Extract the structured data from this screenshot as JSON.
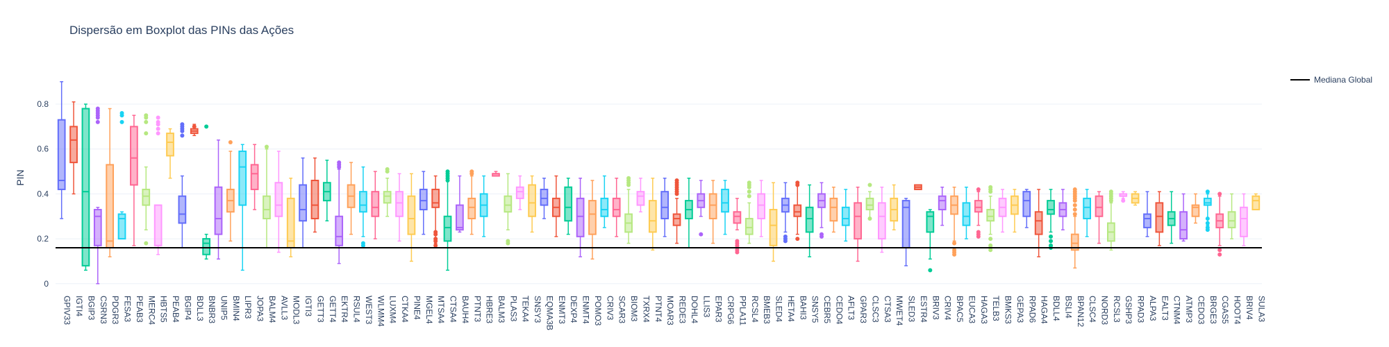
{
  "chart_data": {
    "type": "box",
    "title": "Dispersão em Boxplot das PINs das Ações",
    "xlabel": "",
    "ylabel": "PIN",
    "ylim": [
      -0.01,
      0.93
    ],
    "y_ticks": [
      0,
      0.2,
      0.4,
      0.6,
      0.8
    ],
    "grid": true,
    "legend_position": "top-right",
    "reference_line": {
      "name": "Mediana Global",
      "y": 0.16,
      "color": "#000000"
    },
    "palette": [
      "#636efa",
      "#ef553b",
      "#00cc96",
      "#ab63fa",
      "#ffa15a",
      "#19d3f3",
      "#ff6692",
      "#b6e880",
      "#ff97ff",
      "#fecb52"
    ],
    "series": [
      {
        "name": "GPIV33",
        "min": 0.29,
        "q1": 0.42,
        "median": 0.46,
        "q3": 0.73,
        "max": 0.9,
        "outliers": []
      },
      {
        "name": "IGTI4",
        "min": 0.4,
        "q1": 0.54,
        "median": 0.64,
        "q3": 0.7,
        "max": 0.81,
        "outliers": []
      },
      {
        "name": "BGIP3",
        "min": 0.06,
        "q1": 0.08,
        "median": 0.41,
        "q3": 0.78,
        "max": 0.8,
        "outliers": []
      },
      {
        "name": "CSRN3",
        "min": 0.0,
        "q1": 0.17,
        "median": 0.3,
        "q3": 0.33,
        "max": 0.34,
        "outliers": [
          0.72,
          0.74,
          0.75,
          0.76,
          0.77,
          0.78
        ]
      },
      {
        "name": "PDGR3",
        "min": 0.12,
        "q1": 0.16,
        "median": 0.19,
        "q3": 0.53,
        "max": 0.78,
        "outliers": []
      },
      {
        "name": "FESA3",
        "min": 0.2,
        "q1": 0.2,
        "median": 0.29,
        "q3": 0.31,
        "max": 0.32,
        "outliers": [
          0.72,
          0.75,
          0.76
        ]
      },
      {
        "name": "PEAB3",
        "min": 0.17,
        "q1": 0.44,
        "median": 0.56,
        "q3": 0.7,
        "max": 0.75,
        "outliers": []
      },
      {
        "name": "MERC4",
        "min": 0.24,
        "q1": 0.35,
        "median": 0.39,
        "q3": 0.42,
        "max": 0.52,
        "outliers": [
          0.18,
          0.67,
          0.72,
          0.74,
          0.75
        ]
      },
      {
        "name": "HBTS5",
        "min": 0.13,
        "q1": 0.17,
        "median": 0.17,
        "q3": 0.35,
        "max": 0.35,
        "outliers": [
          0.67,
          0.69,
          0.71,
          0.72,
          0.74
        ]
      },
      {
        "name": "PEAB4",
        "min": 0.47,
        "q1": 0.57,
        "median": 0.63,
        "q3": 0.67,
        "max": 0.69,
        "outliers": []
      },
      {
        "name": "BGIP4",
        "min": 0.16,
        "q1": 0.27,
        "median": 0.31,
        "q3": 0.39,
        "max": 0.48,
        "outliers": [
          0.66,
          0.68,
          0.69,
          0.7,
          0.71
        ]
      },
      {
        "name": "BDLL3",
        "min": 0.66,
        "q1": 0.67,
        "median": 0.68,
        "q3": 0.69,
        "max": 0.71,
        "outliers": [
          0.7
        ]
      },
      {
        "name": "BNBR3",
        "min": 0.11,
        "q1": 0.13,
        "median": 0.18,
        "q3": 0.2,
        "max": 0.22,
        "outliers": [
          0.7
        ]
      },
      {
        "name": "UNIP5",
        "min": 0.11,
        "q1": 0.22,
        "median": 0.29,
        "q3": 0.43,
        "max": 0.64,
        "outliers": []
      },
      {
        "name": "BMIN4",
        "min": 0.19,
        "q1": 0.32,
        "median": 0.37,
        "q3": 0.42,
        "max": 0.59,
        "outliers": [
          0.63
        ]
      },
      {
        "name": "LIPR3",
        "min": 0.06,
        "q1": 0.35,
        "median": 0.52,
        "q3": 0.59,
        "max": 0.62,
        "outliers": []
      },
      {
        "name": "JOPA3",
        "min": 0.33,
        "q1": 0.42,
        "median": 0.49,
        "q3": 0.53,
        "max": 0.62,
        "outliers": []
      },
      {
        "name": "BALM4",
        "min": 0.16,
        "q1": 0.29,
        "median": 0.33,
        "q3": 0.39,
        "max": 0.6,
        "outliers": [
          0.61
        ]
      },
      {
        "name": "AVLL3",
        "min": 0.14,
        "q1": 0.3,
        "median": 0.35,
        "q3": 0.45,
        "max": 0.59,
        "outliers": []
      },
      {
        "name": "MODL3",
        "min": 0.12,
        "q1": 0.16,
        "median": 0.19,
        "q3": 0.38,
        "max": 0.47,
        "outliers": []
      },
      {
        "name": "IGTI3",
        "min": 0.16,
        "q1": 0.28,
        "median": 0.33,
        "q3": 0.44,
        "max": 0.56,
        "outliers": []
      },
      {
        "name": "GETT3",
        "min": 0.23,
        "q1": 0.29,
        "median": 0.35,
        "q3": 0.46,
        "max": 0.56,
        "outliers": []
      },
      {
        "name": "GETT4",
        "min": 0.28,
        "q1": 0.37,
        "median": 0.41,
        "q3": 0.45,
        "max": 0.55,
        "outliers": []
      },
      {
        "name": "EKTR4",
        "min": 0.09,
        "q1": 0.17,
        "median": 0.21,
        "q3": 0.3,
        "max": 0.51,
        "outliers": [
          0.52,
          0.53,
          0.54
        ]
      },
      {
        "name": "RSUL4",
        "min": 0.22,
        "q1": 0.34,
        "median": 0.39,
        "q3": 0.44,
        "max": 0.54,
        "outliers": []
      },
      {
        "name": "WEST3",
        "min": 0.21,
        "q1": 0.32,
        "median": 0.35,
        "q3": 0.41,
        "max": 0.52,
        "outliers": [
          0.17,
          0.18
        ]
      },
      {
        "name": "WLMM4",
        "min": 0.2,
        "q1": 0.3,
        "median": 0.34,
        "q3": 0.41,
        "max": 0.5,
        "outliers": []
      },
      {
        "name": "LUXM4",
        "min": 0.3,
        "q1": 0.36,
        "median": 0.39,
        "q3": 0.41,
        "max": 0.47,
        "outliers": [
          0.5,
          0.51
        ]
      },
      {
        "name": "CTKA4",
        "min": 0.19,
        "q1": 0.3,
        "median": 0.36,
        "q3": 0.41,
        "max": 0.49,
        "outliers": []
      },
      {
        "name": "PINE4",
        "min": 0.1,
        "q1": 0.22,
        "median": 0.29,
        "q3": 0.39,
        "max": 0.49,
        "outliers": []
      },
      {
        "name": "MGEL4",
        "min": 0.22,
        "q1": 0.33,
        "median": 0.37,
        "q3": 0.42,
        "max": 0.5,
        "outliers": []
      },
      {
        "name": "MTSA4",
        "min": 0.18,
        "q1": 0.34,
        "median": 0.36,
        "q3": 0.42,
        "max": 0.48,
        "outliers": [
          0.17,
          0.19,
          0.2,
          0.22,
          0.23
        ]
      },
      {
        "name": "CTSA4",
        "min": 0.06,
        "q1": 0.19,
        "median": 0.25,
        "q3": 0.3,
        "max": 0.49,
        "outliers": [
          0.46,
          0.47,
          0.48,
          0.49,
          0.5
        ]
      },
      {
        "name": "BAUH4",
        "min": 0.23,
        "q1": 0.24,
        "median": 0.25,
        "q3": 0.35,
        "max": 0.48,
        "outliers": []
      },
      {
        "name": "PTNT3",
        "min": 0.22,
        "q1": 0.29,
        "median": 0.34,
        "q3": 0.38,
        "max": 0.48,
        "outliers": [
          0.49,
          0.5
        ]
      },
      {
        "name": "HBRE3",
        "min": 0.21,
        "q1": 0.3,
        "median": 0.35,
        "q3": 0.4,
        "max": 0.48,
        "outliers": []
      },
      {
        "name": "BALM3",
        "min": 0.48,
        "q1": 0.48,
        "median": 0.49,
        "q3": 0.49,
        "max": 0.5,
        "outliers": []
      },
      {
        "name": "PLAS3",
        "min": 0.24,
        "q1": 0.32,
        "median": 0.35,
        "q3": 0.39,
        "max": 0.49,
        "outliers": [
          0.18,
          0.19
        ]
      },
      {
        "name": "TEKA4",
        "min": 0.33,
        "q1": 0.38,
        "median": 0.41,
        "q3": 0.43,
        "max": 0.48,
        "outliers": []
      },
      {
        "name": "SNSY3",
        "min": 0.23,
        "q1": 0.3,
        "median": 0.36,
        "q3": 0.44,
        "max": 0.48,
        "outliers": []
      },
      {
        "name": "EQMA3B",
        "min": 0.29,
        "q1": 0.35,
        "median": 0.38,
        "q3": 0.42,
        "max": 0.47,
        "outliers": []
      },
      {
        "name": "ENMT3",
        "min": 0.21,
        "q1": 0.3,
        "median": 0.34,
        "q3": 0.38,
        "max": 0.48,
        "outliers": []
      },
      {
        "name": "DEXP4",
        "min": 0.22,
        "q1": 0.28,
        "median": 0.34,
        "q3": 0.43,
        "max": 0.47,
        "outliers": []
      },
      {
        "name": "ENMT4",
        "min": 0.12,
        "q1": 0.21,
        "median": 0.3,
        "q3": 0.38,
        "max": 0.47,
        "outliers": []
      },
      {
        "name": "POMO3",
        "min": 0.11,
        "q1": 0.22,
        "median": 0.31,
        "q3": 0.37,
        "max": 0.46,
        "outliers": []
      },
      {
        "name": "CRIV3",
        "min": 0.25,
        "q1": 0.3,
        "median": 0.33,
        "q3": 0.38,
        "max": 0.48,
        "outliers": []
      },
      {
        "name": "SCAR3",
        "min": 0.21,
        "q1": 0.3,
        "median": 0.33,
        "q3": 0.38,
        "max": 0.47,
        "outliers": []
      },
      {
        "name": "BIOM3",
        "min": 0.18,
        "q1": 0.23,
        "median": 0.27,
        "q3": 0.31,
        "max": 0.42,
        "outliers": [
          0.44,
          0.45,
          0.46,
          0.47
        ]
      },
      {
        "name": "TXRX4",
        "min": 0.32,
        "q1": 0.35,
        "median": 0.39,
        "q3": 0.41,
        "max": 0.47,
        "outliers": []
      },
      {
        "name": "PTNT4",
        "min": 0.15,
        "q1": 0.23,
        "median": 0.28,
        "q3": 0.37,
        "max": 0.47,
        "outliers": []
      },
      {
        "name": "MOAR3",
        "min": 0.21,
        "q1": 0.29,
        "median": 0.34,
        "q3": 0.41,
        "max": 0.47,
        "outliers": []
      },
      {
        "name": "REDE3",
        "min": 0.18,
        "q1": 0.26,
        "median": 0.29,
        "q3": 0.31,
        "max": 0.38,
        "outliers": [
          0.4,
          0.41,
          0.42,
          0.43,
          0.44,
          0.45,
          0.46
        ]
      },
      {
        "name": "DOHL4",
        "min": 0.16,
        "q1": 0.29,
        "median": 0.33,
        "q3": 0.37,
        "max": 0.47,
        "outliers": []
      },
      {
        "name": "LLIS3",
        "min": 0.3,
        "q1": 0.34,
        "median": 0.37,
        "q3": 0.4,
        "max": 0.46,
        "outliers": [
          0.22
        ]
      },
      {
        "name": "EPAR3",
        "min": 0.18,
        "q1": 0.29,
        "median": 0.35,
        "q3": 0.4,
        "max": 0.46,
        "outliers": []
      },
      {
        "name": "CRPG6",
        "min": 0.22,
        "q1": 0.32,
        "median": 0.36,
        "q3": 0.42,
        "max": 0.46,
        "outliers": []
      },
      {
        "name": "PPLA11",
        "min": 0.24,
        "q1": 0.27,
        "median": 0.3,
        "q3": 0.32,
        "max": 0.38,
        "outliers": [
          0.14,
          0.15,
          0.16,
          0.17,
          0.18,
          0.19
        ]
      },
      {
        "name": "RCSL4",
        "min": 0.18,
        "q1": 0.22,
        "median": 0.25,
        "q3": 0.29,
        "max": 0.36,
        "outliers": [
          0.39,
          0.41,
          0.43,
          0.44,
          0.45
        ]
      },
      {
        "name": "BMEB3",
        "min": 0.21,
        "q1": 0.29,
        "median": 0.35,
        "q3": 0.4,
        "max": 0.46,
        "outliers": []
      },
      {
        "name": "SLED4",
        "min": 0.1,
        "q1": 0.17,
        "median": 0.26,
        "q3": 0.33,
        "max": 0.45,
        "outliers": []
      },
      {
        "name": "HETA4",
        "min": 0.23,
        "q1": 0.32,
        "median": 0.35,
        "q3": 0.38,
        "max": 0.45,
        "outliers": [
          0.19,
          0.2,
          0.21
        ]
      },
      {
        "name": "BAHI3",
        "min": 0.22,
        "q1": 0.3,
        "median": 0.32,
        "q3": 0.35,
        "max": 0.44,
        "outliers": [
          0.2,
          0.44,
          0.45
        ]
      },
      {
        "name": "SNSY5",
        "min": 0.12,
        "q1": 0.23,
        "median": 0.29,
        "q3": 0.34,
        "max": 0.44,
        "outliers": []
      },
      {
        "name": "CEBR5",
        "min": 0.25,
        "q1": 0.34,
        "median": 0.37,
        "q3": 0.4,
        "max": 0.45,
        "outliers": [
          0.21,
          0.22
        ]
      },
      {
        "name": "CEDO4",
        "min": 0.23,
        "q1": 0.28,
        "median": 0.34,
        "q3": 0.38,
        "max": 0.43,
        "outliers": []
      },
      {
        "name": "AFLT3",
        "min": 0.19,
        "q1": 0.26,
        "median": 0.29,
        "q3": 0.34,
        "max": 0.42,
        "outliers": []
      },
      {
        "name": "GPAR3",
        "min": 0.1,
        "q1": 0.2,
        "median": 0.3,
        "q3": 0.36,
        "max": 0.43,
        "outliers": []
      },
      {
        "name": "CLSC3",
        "min": 0.29,
        "q1": 0.33,
        "median": 0.35,
        "q3": 0.38,
        "max": 0.41,
        "outliers": [
          0.29,
          0.44
        ]
      },
      {
        "name": "CTSA3",
        "min": 0.14,
        "q1": 0.2,
        "median": 0.3,
        "q3": 0.36,
        "max": 0.43,
        "outliers": []
      },
      {
        "name": "MWET4",
        "min": 0.24,
        "q1": 0.28,
        "median": 0.33,
        "q3": 0.38,
        "max": 0.44,
        "outliers": []
      },
      {
        "name": "SLED3",
        "min": 0.08,
        "q1": 0.16,
        "median": 0.34,
        "q3": 0.37,
        "max": 0.38,
        "outliers": []
      },
      {
        "name": "ESTR4",
        "min": 0.42,
        "q1": 0.42,
        "median": 0.43,
        "q3": 0.44,
        "max": 0.44,
        "outliers": []
      },
      {
        "name": "BRIV3",
        "min": 0.11,
        "q1": 0.23,
        "median": 0.3,
        "q3": 0.32,
        "max": 0.33,
        "outliers": [
          0.06
        ]
      },
      {
        "name": "CRIV4",
        "min": 0.26,
        "q1": 0.33,
        "median": 0.37,
        "q3": 0.39,
        "max": 0.43,
        "outliers": []
      },
      {
        "name": "BPAC5",
        "min": 0.19,
        "q1": 0.31,
        "median": 0.35,
        "q3": 0.39,
        "max": 0.43,
        "outliers": [
          0.13,
          0.14,
          0.15,
          0.18
        ]
      },
      {
        "name": "EUCA3",
        "min": 0.2,
        "q1": 0.26,
        "median": 0.3,
        "q3": 0.36,
        "max": 0.43,
        "outliers": []
      },
      {
        "name": "HAGA3",
        "min": 0.26,
        "q1": 0.32,
        "median": 0.34,
        "q3": 0.37,
        "max": 0.41,
        "outliers": [
          0.21,
          0.22,
          0.23,
          0.42
        ]
      },
      {
        "name": "TELB3",
        "min": 0.22,
        "q1": 0.28,
        "median": 0.3,
        "q3": 0.33,
        "max": 0.39,
        "outliers": [
          0.15,
          0.16,
          0.17,
          0.2,
          0.41,
          0.42,
          0.43
        ]
      },
      {
        "name": "BMKS3",
        "min": 0.23,
        "q1": 0.3,
        "median": 0.34,
        "q3": 0.38,
        "max": 0.42,
        "outliers": []
      },
      {
        "name": "GEPA3",
        "min": 0.23,
        "q1": 0.31,
        "median": 0.35,
        "q3": 0.39,
        "max": 0.42,
        "outliers": []
      },
      {
        "name": "RPAD6",
        "min": 0.25,
        "q1": 0.3,
        "median": 0.37,
        "q3": 0.41,
        "max": 0.42,
        "outliers": []
      },
      {
        "name": "HAGA4",
        "min": 0.12,
        "q1": 0.22,
        "median": 0.28,
        "q3": 0.32,
        "max": 0.42,
        "outliers": []
      },
      {
        "name": "BDLL4",
        "min": 0.23,
        "q1": 0.31,
        "median": 0.33,
        "q3": 0.37,
        "max": 0.42,
        "outliers": [
          0.16,
          0.17,
          0.19,
          0.21
        ]
      },
      {
        "name": "BSLI4",
        "min": 0.24,
        "q1": 0.3,
        "median": 0.33,
        "q3": 0.36,
        "max": 0.42,
        "outliers": []
      },
      {
        "name": "BPAN12",
        "min": 0.07,
        "q1": 0.15,
        "median": 0.18,
        "q3": 0.22,
        "max": 0.3,
        "outliers": [
          0.31,
          0.33,
          0.35,
          0.37,
          0.38,
          0.39,
          0.4,
          0.41,
          0.42
        ]
      },
      {
        "name": "CLSC4",
        "min": 0.21,
        "q1": 0.29,
        "median": 0.34,
        "q3": 0.38,
        "max": 0.42,
        "outliers": []
      },
      {
        "name": "NORD3",
        "min": 0.18,
        "q1": 0.3,
        "median": 0.34,
        "q3": 0.39,
        "max": 0.41,
        "outliers": []
      },
      {
        "name": "RCSL3",
        "min": 0.15,
        "q1": 0.19,
        "median": 0.23,
        "q3": 0.27,
        "max": 0.36,
        "outliers": [
          0.37,
          0.38,
          0.39,
          0.4,
          0.41
        ]
      },
      {
        "name": "GSHP3",
        "min": 0.38,
        "q1": 0.39,
        "median": 0.39,
        "q3": 0.4,
        "max": 0.41,
        "outliers": [
          0.37
        ]
      },
      {
        "name": "RPAD3",
        "min": 0.35,
        "q1": 0.36,
        "median": 0.38,
        "q3": 0.4,
        "max": 0.41,
        "outliers": []
      },
      {
        "name": "ALPA3",
        "min": 0.21,
        "q1": 0.25,
        "median": 0.29,
        "q3": 0.31,
        "max": 0.41,
        "outliers": []
      },
      {
        "name": "EALT3",
        "min": 0.17,
        "q1": 0.23,
        "median": 0.3,
        "q3": 0.36,
        "max": 0.41,
        "outliers": []
      },
      {
        "name": "CTNM4",
        "min": 0.18,
        "q1": 0.26,
        "median": 0.29,
        "q3": 0.32,
        "max": 0.41,
        "outliers": []
      },
      {
        "name": "ATMP3",
        "min": 0.19,
        "q1": 0.2,
        "median": 0.24,
        "q3": 0.32,
        "max": 0.4,
        "outliers": []
      },
      {
        "name": "CEDO3",
        "min": 0.27,
        "q1": 0.3,
        "median": 0.34,
        "q3": 0.35,
        "max": 0.4,
        "outliers": []
      },
      {
        "name": "BRGE3",
        "min": 0.26,
        "q1": 0.35,
        "median": 0.36,
        "q3": 0.38,
        "max": 0.4,
        "outliers": [
          0.24,
          0.25,
          0.27,
          0.29,
          0.41
        ]
      },
      {
        "name": "CGAS5",
        "min": 0.17,
        "q1": 0.25,
        "median": 0.28,
        "q3": 0.31,
        "max": 0.39,
        "outliers": [
          0.13,
          0.15,
          0.4
        ]
      },
      {
        "name": "HOOT4",
        "min": 0.2,
        "q1": 0.25,
        "median": 0.28,
        "q3": 0.32,
        "max": 0.4,
        "outliers": []
      },
      {
        "name": "BRIV4",
        "min": 0.17,
        "q1": 0.21,
        "median": 0.29,
        "q3": 0.34,
        "max": 0.4,
        "outliers": []
      },
      {
        "name": "SULA3",
        "min": 0.33,
        "q1": 0.33,
        "median": 0.37,
        "q3": 0.39,
        "max": 0.4,
        "outliers": []
      }
    ]
  }
}
